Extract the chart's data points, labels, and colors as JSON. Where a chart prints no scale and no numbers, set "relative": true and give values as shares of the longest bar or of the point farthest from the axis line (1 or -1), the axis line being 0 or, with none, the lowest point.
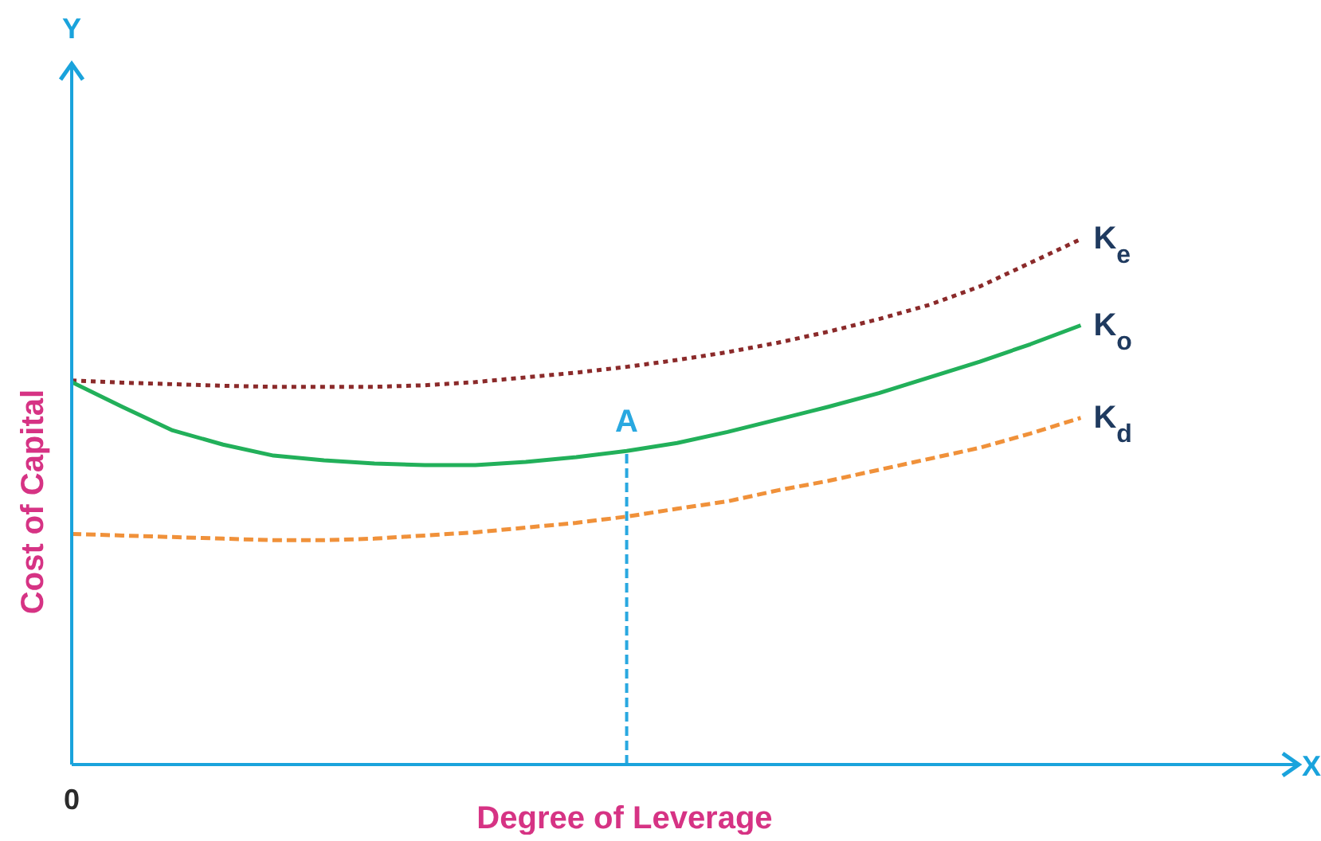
{
  "chart_data": {
    "type": "line",
    "relative": true,
    "xlabel": "Degree of Leverage",
    "ylabel": "Cost of Capital",
    "annotations": [
      "Y",
      "X",
      "0",
      {
        "text": "A",
        "y": 0.597
      }
    ],
    "marker": "none",
    "categories": [
      null,
      null,
      null,
      null,
      null,
      null,
      null,
      null,
      null,
      null,
      null,
      null,
      null,
      null,
      null,
      null,
      null,
      null,
      null,
      null,
      null
    ],
    "series": [
      {
        "name": "K$_{e}$",
        "color": "#8b2a2a",
        "line_style": "dotted",
        "values": [
          0.731,
          0.727,
          0.724,
          0.721,
          0.719,
          0.719,
          0.719,
          0.722,
          0.728,
          0.737,
          0.746,
          0.757,
          0.77,
          0.785,
          0.803,
          0.824,
          0.848,
          0.875,
          0.91,
          0.955,
          1
        ]
      },
      {
        "name": "K$_{o}$",
        "color": "#22b05a",
        "line_style": "solid",
        "values": [
          0.728,
          0.681,
          0.636,
          0.609,
          0.588,
          0.579,
          0.573,
          0.57,
          0.57,
          0.576,
          0.585,
          0.597,
          0.612,
          0.633,
          0.657,
          0.681,
          0.707,
          0.737,
          0.767,
          0.8,
          0.836
        ]
      },
      {
        "name": "K$_{d}$",
        "color": "#f0913a",
        "line_style": "dashed",
        "values": [
          0.439,
          0.436,
          0.433,
          0.43,
          0.427,
          0.427,
          0.43,
          0.436,
          0.442,
          0.451,
          0.46,
          0.472,
          0.487,
          0.501,
          0.522,
          0.54,
          0.561,
          0.582,
          0.603,
          0.63,
          0.66
        ]
      }
    ]
  }
}
